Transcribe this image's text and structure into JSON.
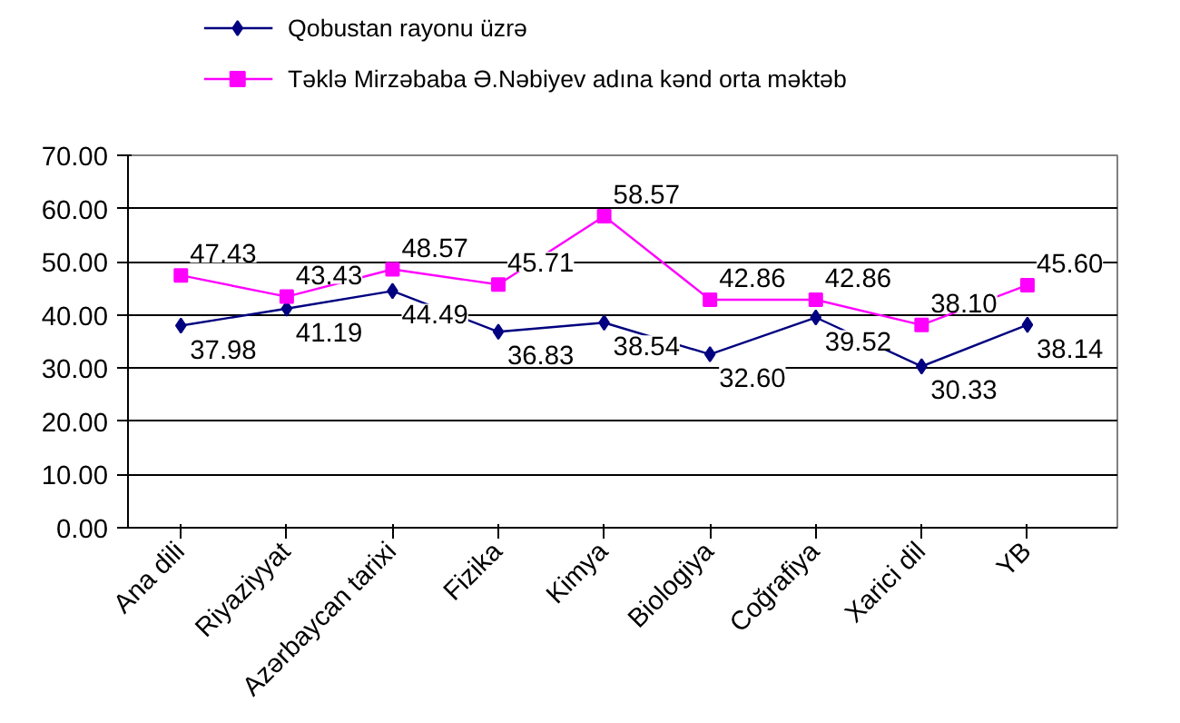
{
  "chart_data": {
    "type": "line",
    "categories": [
      "Ana dili",
      "Riyaziyyat",
      "Azərbaycan tarixi",
      "Fizika",
      "Kimya",
      "Biologiya",
      "Coğrafiya",
      "Xarici dil",
      "YB"
    ],
    "series": [
      {
        "name": "Qobustan rayonu üzrə",
        "color": "#000080",
        "marker": "diamond",
        "values": [
          37.98,
          41.19,
          44.49,
          36.83,
          38.54,
          32.6,
          39.52,
          30.33,
          38.14
        ],
        "value_labels": [
          "37.98",
          "41.19",
          "44.49",
          "36.83",
          "38.54",
          "32.60",
          "39.52",
          "30.33",
          "38.14"
        ]
      },
      {
        "name": "Təklə Mirzəbaba Ə.Nəbiyev adına kənd orta məktəb",
        "color": "#ff00ff",
        "marker": "square",
        "values": [
          47.43,
          43.43,
          48.57,
          45.71,
          58.57,
          42.86,
          42.86,
          38.1,
          45.6
        ],
        "value_labels": [
          "47.43",
          "43.43",
          "48.57",
          "45.71",
          "58.57",
          "42.86",
          "42.86",
          "38.10",
          "45.60"
        ]
      }
    ],
    "ylim": [
      0,
      70
    ],
    "yticks": [
      {
        "value": 0,
        "label": "0.00"
      },
      {
        "value": 10,
        "label": "10.00"
      },
      {
        "value": 20,
        "label": "20.00"
      },
      {
        "value": 30,
        "label": "30.00"
      },
      {
        "value": 40,
        "label": "40.00"
      },
      {
        "value": 50,
        "label": "50.00"
      },
      {
        "value": 60,
        "label": "60.00"
      },
      {
        "value": 70,
        "label": "70.00"
      }
    ],
    "grid": "y",
    "legend": "top"
  }
}
